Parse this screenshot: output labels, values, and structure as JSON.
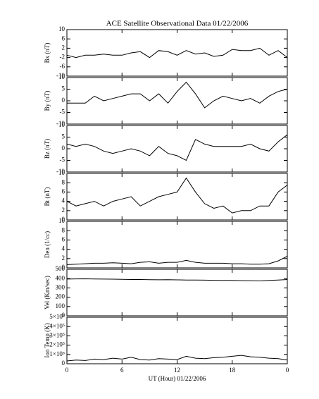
{
  "chart_data": [
    {
      "type": "line",
      "title": "ACE Satellite Observational Data   01/22/2006",
      "ylabel": "Bx (nT)",
      "color": "#000000",
      "xlim": [
        0,
        24
      ],
      "xticks": [
        0,
        6,
        12,
        18,
        {
          "value": 24,
          "label": "0"
        }
      ],
      "ylim": [
        -10,
        10
      ],
      "yticks": [
        -10,
        -6,
        -2,
        2,
        6,
        10
      ],
      "x": [
        0,
        1,
        2,
        3,
        4,
        5,
        6,
        7,
        8,
        9,
        10,
        11,
        12,
        13,
        14,
        15,
        16,
        17,
        18,
        19,
        20,
        21,
        22,
        23,
        24
      ],
      "values": [
        -1,
        -2,
        -1,
        -1,
        -0.5,
        -1,
        -1,
        0,
        0.5,
        -2,
        1,
        0.5,
        -1,
        1,
        -0.5,
        0,
        -1.5,
        -1,
        1.5,
        1,
        1,
        2,
        -1,
        1,
        -2
      ]
    },
    {
      "type": "line",
      "ylabel": "By (nT)",
      "color": "#000000",
      "xlim": [
        0,
        24
      ],
      "xticks": [
        0,
        6,
        12,
        18,
        {
          "value": 24,
          "label": "0"
        }
      ],
      "ylim": [
        -10,
        10
      ],
      "yticks": [
        -10,
        -5,
        0,
        5,
        10
      ],
      "x": [
        0,
        1,
        2,
        3,
        4,
        5,
        6,
        7,
        8,
        9,
        10,
        11,
        12,
        13,
        14,
        15,
        16,
        17,
        18,
        19,
        20,
        21,
        22,
        23,
        24
      ],
      "values": [
        -1,
        -1,
        -1,
        2,
        0,
        1,
        2,
        3,
        3,
        0,
        3,
        -1,
        4,
        8,
        3,
        -3,
        0,
        2,
        1,
        0,
        1,
        -1,
        2,
        4,
        5
      ]
    },
    {
      "type": "line",
      "ylabel": "Bz (nT)",
      "color": "#000000",
      "xlim": [
        0,
        24
      ],
      "xticks": [
        0,
        6,
        12,
        18,
        {
          "value": 24,
          "label": "0"
        }
      ],
      "ylim": [
        -10,
        10
      ],
      "yticks": [
        -10,
        -5,
        0,
        5,
        10
      ],
      "x": [
        0,
        1,
        2,
        3,
        4,
        5,
        6,
        7,
        8,
        9,
        10,
        11,
        12,
        13,
        14,
        15,
        16,
        17,
        18,
        19,
        20,
        21,
        22,
        23,
        24
      ],
      "values": [
        2,
        1,
        2,
        1,
        -1,
        -2,
        -1,
        0,
        -1,
        -3,
        1,
        -2,
        -3,
        -5,
        4,
        2,
        1,
        1,
        1,
        1,
        2,
        0,
        -1,
        3,
        6
      ]
    },
    {
      "type": "line",
      "ylabel": "Bt (nT)",
      "color": "#000000",
      "xlim": [
        0,
        24
      ],
      "xticks": [
        0,
        6,
        12,
        18,
        {
          "value": 24,
          "label": "0"
        }
      ],
      "ylim": [
        0,
        10
      ],
      "yticks": [
        0,
        2,
        4,
        6,
        8,
        10
      ],
      "x": [
        0,
        1,
        2,
        3,
        4,
        5,
        6,
        7,
        8,
        9,
        10,
        11,
        12,
        13,
        14,
        15,
        16,
        17,
        18,
        19,
        20,
        21,
        22,
        23,
        24
      ],
      "values": [
        4,
        3,
        3.5,
        4,
        3,
        4,
        4.5,
        5,
        3,
        4,
        5,
        5.5,
        6,
        9,
        6,
        3.5,
        2.5,
        3,
        1.5,
        2,
        2,
        3,
        3,
        6,
        7.5
      ]
    },
    {
      "type": "line",
      "ylabel": "Den (1/cc)",
      "color": "#000000",
      "xlim": [
        0,
        24
      ],
      "xticks": [
        0,
        6,
        12,
        18,
        {
          "value": 24,
          "label": "0"
        }
      ],
      "ylim": [
        0,
        10
      ],
      "yticks": [
        0,
        2,
        4,
        6,
        8,
        10
      ],
      "x": [
        0,
        1,
        2,
        3,
        4,
        5,
        6,
        7,
        8,
        9,
        10,
        11,
        12,
        13,
        14,
        15,
        16,
        17,
        18,
        19,
        20,
        21,
        22,
        23,
        24
      ],
      "values": [
        0.7,
        0.8,
        0.9,
        1,
        1,
        1.1,
        1,
        0.9,
        1.2,
        1.3,
        1,
        1.2,
        1.2,
        1.6,
        1.2,
        1,
        1,
        1,
        0.9,
        0.9,
        0.8,
        0.8,
        0.9,
        1.5,
        2.5
      ]
    },
    {
      "type": "line",
      "ylabel": "Vel (Km/sec)",
      "color": "#000000",
      "xlim": [
        0,
        24
      ],
      "xticks": [
        0,
        6,
        12,
        18,
        {
          "value": 24,
          "label": "0"
        }
      ],
      "ylim": [
        0,
        500
      ],
      "yticks": [
        0,
        100,
        200,
        300,
        400,
        500
      ],
      "x": [
        0,
        1,
        2,
        3,
        4,
        5,
        6,
        7,
        8,
        9,
        10,
        11,
        12,
        13,
        14,
        15,
        16,
        17,
        18,
        19,
        20,
        21,
        22,
        23,
        24
      ],
      "values": [
        395,
        397,
        398,
        396,
        395,
        394,
        392,
        390,
        390,
        388,
        387,
        388,
        386,
        385,
        384,
        383,
        382,
        380,
        380,
        378,
        377,
        375,
        380,
        385,
        390
      ]
    },
    {
      "type": "line",
      "ylabel": "Ion Temp (K)",
      "xlabel": "UT (Hour)   01/22/2006",
      "color": "#000000",
      "xlim": [
        0,
        24
      ],
      "xticks": [
        0,
        6,
        12,
        18,
        {
          "value": 24,
          "label": "0"
        }
      ],
      "ylim": [
        0,
        500000
      ],
      "yticks": [
        0,
        {
          "value": 100000,
          "label": "1×10⁵"
        },
        {
          "value": 200000,
          "label": "2×10⁵"
        },
        {
          "value": 300000,
          "label": "3×10⁵"
        },
        {
          "value": 400000,
          "label": "4×10⁵"
        },
        {
          "value": 500000,
          "label": "5×10⁵"
        }
      ],
      "x": [
        0,
        1,
        2,
        3,
        4,
        5,
        6,
        7,
        8,
        9,
        10,
        11,
        12,
        13,
        14,
        15,
        16,
        17,
        18,
        19,
        20,
        21,
        22,
        23,
        24
      ],
      "values": [
        30000,
        40000,
        35000,
        50000,
        45000,
        60000,
        50000,
        70000,
        45000,
        40000,
        55000,
        50000,
        45000,
        80000,
        60000,
        55000,
        65000,
        70000,
        80000,
        90000,
        75000,
        70000,
        60000,
        55000,
        40000
      ]
    }
  ]
}
